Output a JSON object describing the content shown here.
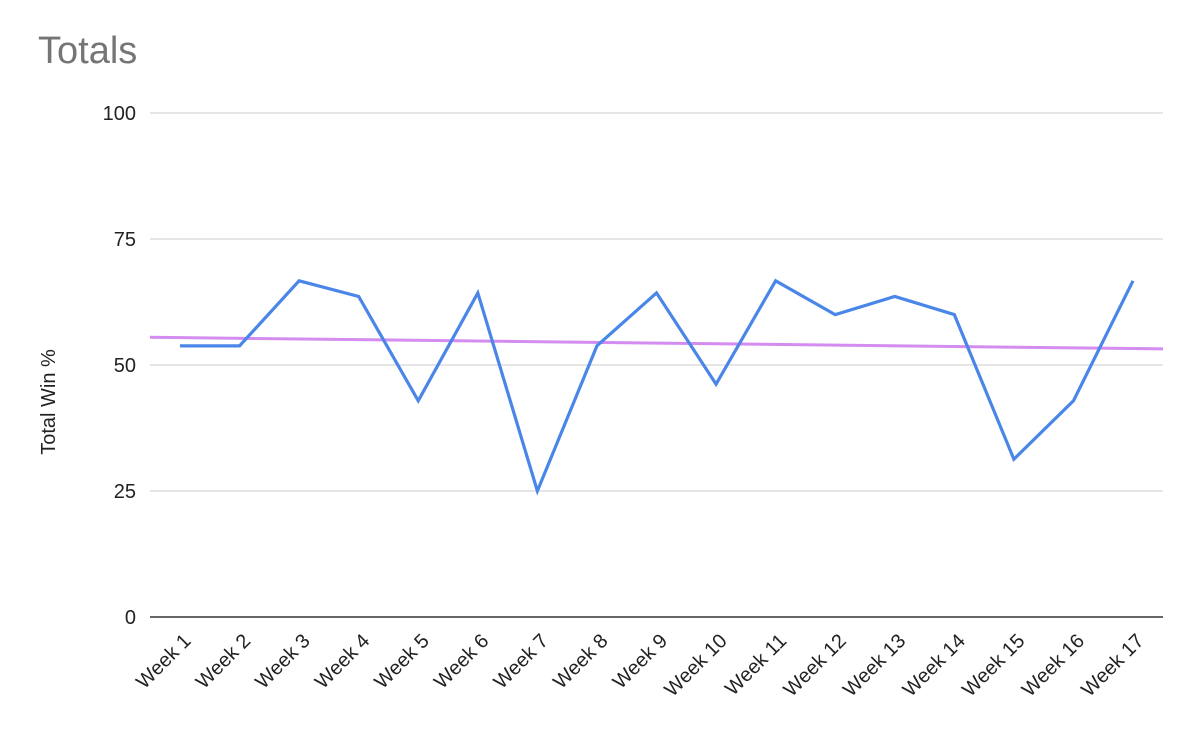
{
  "chart_data": {
    "type": "line",
    "title": "Totals",
    "ylabel": "Total Win %",
    "xlabel": "",
    "categories": [
      "Week 1",
      "Week 2",
      "Week 3",
      "Week 4",
      "Week 5",
      "Week 6",
      "Week 7",
      "Week 8",
      "Week 9",
      "Week 10",
      "Week 11",
      "Week 12",
      "Week 13",
      "Week 14",
      "Week 15",
      "Week 16",
      "Week 17"
    ],
    "ylim": [
      0,
      100
    ],
    "yticks": [
      0,
      25,
      50,
      75,
      100
    ],
    "grid": true,
    "series": [
      {
        "values": [
          53.8,
          53.8,
          66.7,
          63.6,
          42.9,
          64.3,
          25.0,
          53.8,
          64.3,
          46.2,
          66.7,
          60.0,
          63.6,
          60.0,
          31.3,
          42.9,
          66.7
        ],
        "color": "#4a86e8"
      }
    ],
    "trendline": {
      "start": 55.5,
      "end": 53.2,
      "color": "#d48cf0"
    }
  }
}
